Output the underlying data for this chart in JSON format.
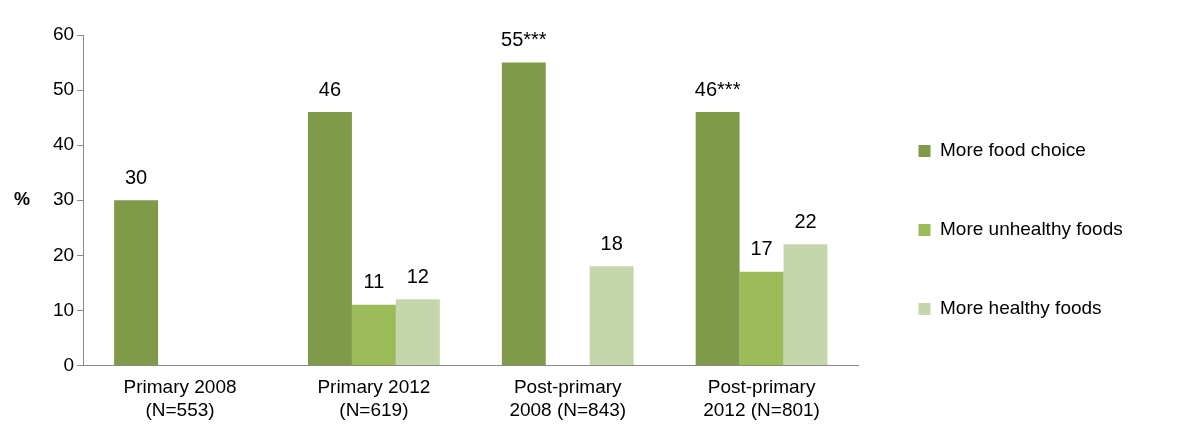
{
  "chart_data": {
    "type": "bar",
    "ylabel": "%",
    "categories": [
      "Primary 2008\n(N=553)",
      "Primary 2012\n(N=619)",
      "Post-primary\n2008 (N=843)",
      "Post-primary\n2012 (N=801)"
    ],
    "series": [
      {
        "name": "More food choice",
        "color": "#7f9a48",
        "values": [
          30,
          46,
          55,
          46
        ],
        "value_labels": [
          "30",
          "46",
          "55***",
          "46***"
        ]
      },
      {
        "name": "More unhealthy foods",
        "color": "#9bbb59",
        "values": [
          null,
          11,
          null,
          17
        ],
        "value_labels": [
          null,
          "11",
          null,
          "17"
        ]
      },
      {
        "name": "More healthy foods",
        "color": "#c6d6ac",
        "values": [
          null,
          12,
          18,
          22
        ],
        "value_labels": [
          null,
          "12",
          "18",
          "22"
        ]
      }
    ],
    "ylim": [
      0,
      60
    ],
    "yticks": [
      0,
      10,
      20,
      30,
      40,
      50,
      60
    ],
    "grid": false,
    "legend": "right"
  }
}
